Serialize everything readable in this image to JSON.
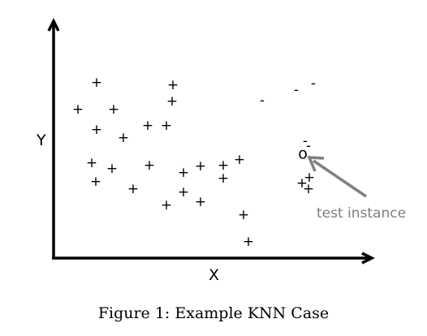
{
  "diagram": {
    "y_axis_label": "Y",
    "x_axis_label": "X",
    "plus_symbol": "+",
    "minus_symbol": "-",
    "test_symbol": "o",
    "annotation": "test instance",
    "caption": "Figure 1: Example KNN Case",
    "colors": {
      "axis": "#000000",
      "markers": "#000000",
      "annotation": "#7f7f7f",
      "pointer": "#808080"
    }
  }
}
